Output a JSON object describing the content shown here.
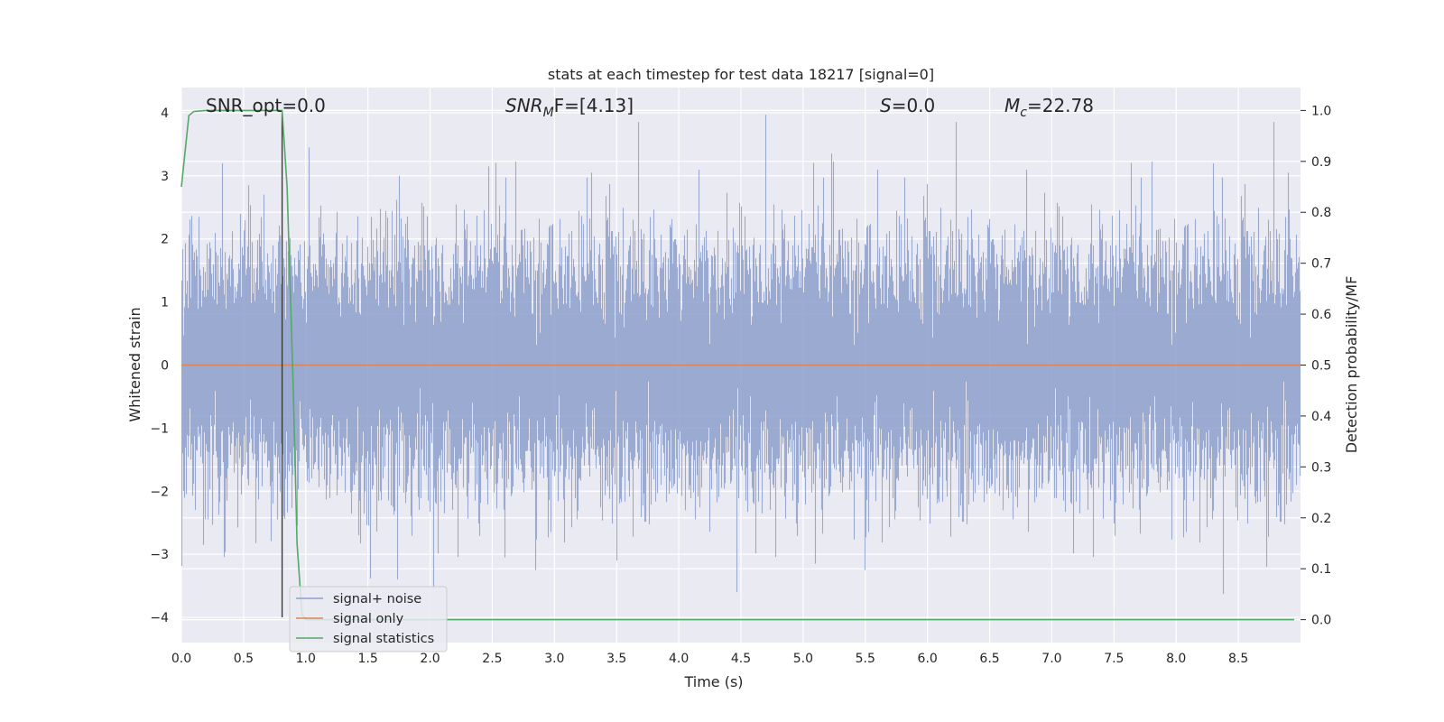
{
  "chart_data": {
    "type": "line",
    "title": "stats at each timestep for test data 18217 [signal=0]",
    "xlabel": "Time (s)",
    "ylabel": "Whitened strain",
    "y2label": "Detection probability/MF",
    "xlim": [
      0.0,
      9.0
    ],
    "ylim": [
      -4.4,
      4.4
    ],
    "y2lim": [
      -0.045,
      1.045
    ],
    "x_ticks": [
      0.0,
      0.5,
      1.0,
      1.5,
      2.0,
      2.5,
      3.0,
      3.5,
      4.0,
      4.5,
      5.0,
      5.5,
      6.0,
      6.5,
      7.0,
      7.5,
      8.0,
      8.5
    ],
    "x_tick_labels": [
      "0.0",
      "0.5",
      "1.0",
      "1.5",
      "2.0",
      "2.5",
      "3.0",
      "3.5",
      "4.0",
      "4.5",
      "5.0",
      "5.5",
      "6.0",
      "6.5",
      "7.0",
      "7.5",
      "8.0",
      "8.5"
    ],
    "y_ticks": [
      4,
      3,
      2,
      1,
      0,
      -1,
      -2,
      -3,
      -4
    ],
    "y_tick_labels": [
      "4",
      "3",
      "2",
      "1",
      "0",
      "−1",
      "−2",
      "−3",
      "−4"
    ],
    "y2_ticks": [
      1.0,
      0.9,
      0.8,
      0.7,
      0.6,
      0.5,
      0.4,
      0.3,
      0.2,
      0.1,
      0.0
    ],
    "y2_tick_labels": [
      "1.0",
      "0.9",
      "0.8",
      "0.7",
      "0.6",
      "0.5",
      "0.4",
      "0.3",
      "0.2",
      "0.1",
      "0.0"
    ],
    "grid": true,
    "legend_position": "lower-left",
    "annotations": [
      {
        "id": "snr_opt",
        "text": "SNR_opt=0.0"
      },
      {
        "id": "snr_mf",
        "text": "SNR_MF=[4.13]",
        "base": "SNR",
        "sub": "M",
        "rest": "F=[4.13]"
      },
      {
        "id": "s_stat",
        "text": "S=0.0",
        "base": "S",
        "rest": "=0.0"
      },
      {
        "id": "chirp_mass",
        "text": "M_c=22.78",
        "base": "M",
        "sub": "c",
        "rest": "=22.78"
      }
    ],
    "marker_line": {
      "x": 0.81,
      "y_from": -4.0,
      "y_to": 4.0
    },
    "series": [
      {
        "name": "signal+ noise",
        "axis": "left",
        "color": "#8c9fcb",
        "kind": "noise",
        "sample_rate_hz": 2048,
        "x_range": [
          0.0,
          9.0
        ],
        "core_amplitude": 1.6,
        "typical_peak_abs": [
          2.6,
          3.2
        ],
        "max_value": 3.97,
        "min_value": -3.63,
        "notable_extrema": [
          {
            "x": 0.14,
            "y": 2.35
          },
          {
            "x": 0.33,
            "y": 3.2
          },
          {
            "x": 0.54,
            "y": 2.85
          },
          {
            "x": 1.03,
            "y": 3.45
          },
          {
            "x": 1.75,
            "y": 3.0
          },
          {
            "x": 2.47,
            "y": 3.15
          },
          {
            "x": 3.3,
            "y": 3.05
          },
          {
            "x": 4.16,
            "y": 3.1
          },
          {
            "x": 4.7,
            "y": 3.97
          },
          {
            "x": 5.23,
            "y": 3.35
          },
          {
            "x": 5.6,
            "y": 3.1
          },
          {
            "x": 6.8,
            "y": 3.1
          },
          {
            "x": 8.3,
            "y": 3.2
          },
          {
            "x": 8.9,
            "y": 3.05
          },
          {
            "x": 0.18,
            "y": -2.85
          },
          {
            "x": 1.74,
            "y": -3.4
          },
          {
            "x": 2.03,
            "y": -3.55
          },
          {
            "x": 2.6,
            "y": -3.05
          },
          {
            "x": 2.85,
            "y": -3.25
          },
          {
            "x": 3.5,
            "y": -3.1
          },
          {
            "x": 4.47,
            "y": -3.6
          },
          {
            "x": 5.1,
            "y": -3.15
          },
          {
            "x": 5.5,
            "y": -3.25
          },
          {
            "x": 8.38,
            "y": -3.63
          },
          {
            "x": 8.73,
            "y": -3.2
          }
        ]
      },
      {
        "name": "signal only",
        "axis": "left",
        "color": "#dd8452",
        "x": [
          0.0,
          9.0
        ],
        "y": [
          0.0,
          0.0
        ]
      },
      {
        "name": "signal statistics",
        "axis": "right",
        "color": "#55a868",
        "x": [
          0.0,
          0.06,
          0.1,
          0.2,
          0.4,
          0.6,
          0.81,
          0.85,
          0.9,
          0.93,
          0.97,
          1.0,
          8.95
        ],
        "y": [
          0.85,
          0.99,
          0.998,
          1.0,
          1.0,
          1.0,
          1.0,
          0.85,
          0.45,
          0.15,
          0.01,
          0.0,
          0.0
        ]
      }
    ]
  }
}
